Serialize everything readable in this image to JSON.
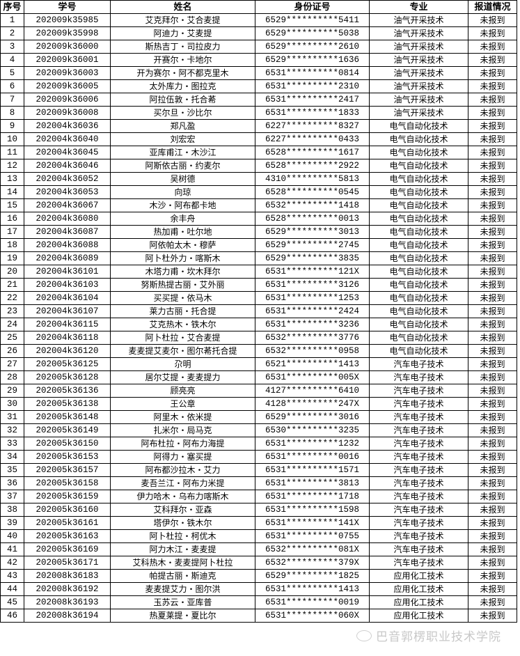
{
  "headers": [
    "序号",
    "学号",
    "姓名",
    "身份证号",
    "专业",
    "报道情况"
  ],
  "rows": [
    [
      "1",
      "202009k35985",
      "艾克拜尔・艾合麦提",
      "6529**********5411",
      "油气开采技术",
      "未报到"
    ],
    [
      "2",
      "202009k35998",
      "阿迪力・艾麦提",
      "6529**********5038",
      "油气开采技术",
      "未报到"
    ],
    [
      "3",
      "202009k36000",
      "斯热吉丁・司拉皮力",
      "6529**********2610",
      "油气开采技术",
      "未报到"
    ],
    [
      "4",
      "202009k36001",
      "开赛尔・卡地尔",
      "6529**********1636",
      "油气开采技术",
      "未报到"
    ],
    [
      "5",
      "202009k36003",
      "开为赛尔・阿不都克里木",
      "6531**********0814",
      "油气开采技术",
      "未报到"
    ],
    [
      "6",
      "202009k36005",
      "太外库力・图拉克",
      "6531**********2310",
      "油气开采技术",
      "未报到"
    ],
    [
      "7",
      "202009k36006",
      "阿拉伍敦・托合莃",
      "6531**********2417",
      "油气开采技术",
      "未报到"
    ],
    [
      "8",
      "202009k36008",
      "买尔旦・沙比尔",
      "6531**********1833",
      "油气开采技术",
      "未报到"
    ],
    [
      "9",
      "202004k36036",
      "郑凡盈",
      "6227**********8327",
      "电气自动化技术",
      "未报到"
    ],
    [
      "10",
      "202004k36040",
      "刘宏宏",
      "6227**********0433",
      "电气自动化技术",
      "未报到"
    ],
    [
      "11",
      "202004k36045",
      "亚库甫江・木沙江",
      "6528**********1617",
      "电气自动化技术",
      "未报到"
    ],
    [
      "12",
      "202004k36046",
      "阿斯依古丽・约麦尔",
      "6528**********2922",
      "电气自动化技术",
      "未报到"
    ],
    [
      "13",
      "202004k36052",
      "吴树德",
      "4310**********5813",
      "电气自动化技术",
      "未报到"
    ],
    [
      "14",
      "202004k36053",
      "向琼",
      "6528**********0545",
      "电气自动化技术",
      "未报到"
    ],
    [
      "15",
      "202004k36067",
      "木沙・阿布都卡地",
      "6532**********1418",
      "电气自动化技术",
      "未报到"
    ],
    [
      "16",
      "202004k36080",
      "余丰舟",
      "6528**********0013",
      "电气自动化技术",
      "未报到"
    ],
    [
      "17",
      "202004k36087",
      "热加甫・吐尔地",
      "6529**********3013",
      "电气自动化技术",
      "未报到"
    ],
    [
      "18",
      "202004k36088",
      "阿依帕太木・穆萨",
      "6529**********2745",
      "电气自动化技术",
      "未报到"
    ],
    [
      "19",
      "202004k36089",
      "阿卜杜外力・喀斯木",
      "6529**********3835",
      "电气自动化技术",
      "未报到"
    ],
    [
      "20",
      "202004k36101",
      "木塔力甫・坎木拜尔",
      "6531**********121X",
      "电气自动化技术",
      "未报到"
    ],
    [
      "21",
      "202004k36103",
      "努斯热提古丽・艾外丽",
      "6531**********3126",
      "电气自动化技术",
      "未报到"
    ],
    [
      "22",
      "202004k36104",
      "买买提・依马木",
      "6531**********1253",
      "电气自动化技术",
      "未报到"
    ],
    [
      "23",
      "202004k36107",
      "莱力古丽・托合提",
      "6531**********2424",
      "电气自动化技术",
      "未报到"
    ],
    [
      "24",
      "202004k36115",
      "艾克热木・铁木尔",
      "6531**********3236",
      "电气自动化技术",
      "未报到"
    ],
    [
      "25",
      "202004k36118",
      "阿卜杜拉・艾合麦提",
      "6532**********3776",
      "电气自动化技术",
      "未报到"
    ],
    [
      "26",
      "202004k36120",
      "麦麦提艾麦尔・图尔莃托合提",
      "6532**********0958",
      "电气自动化技术",
      "未报到"
    ],
    [
      "27",
      "202005k36125",
      "尕明",
      "6521**********1413",
      "汽车电子技术",
      "未报到"
    ],
    [
      "28",
      "202005k36128",
      "居尔艾提・麦麦提力",
      "6531**********005X",
      "汽车电子技术",
      "未报到"
    ],
    [
      "29",
      "202005k36136",
      "顾亮亮",
      "4127**********6410",
      "汽车电子技术",
      "未报到"
    ],
    [
      "30",
      "202005k36138",
      "王公章",
      "4128**********247X",
      "汽车电子技术",
      "未报到"
    ],
    [
      "31",
      "202005k36148",
      "阿里木・依米提",
      "6529**********3016",
      "汽车电子技术",
      "未报到"
    ],
    [
      "32",
      "202005k36149",
      "扎米尔・局马克",
      "6530**********3235",
      "汽车电子技术",
      "未报到"
    ],
    [
      "33",
      "202005k36150",
      "阿布杜拉・阿布力海提",
      "6531**********1232",
      "汽车电子技术",
      "未报到"
    ],
    [
      "34",
      "202005k36153",
      "阿得力・塞买提",
      "6531**********0016",
      "汽车电子技术",
      "未报到"
    ],
    [
      "35",
      "202005k36157",
      "阿布都沙拉木・艾力",
      "6531**********1571",
      "汽车电子技术",
      "未报到"
    ],
    [
      "36",
      "202005k36158",
      "麦吾兰江・阿布力米提",
      "6531**********3813",
      "汽车电子技术",
      "未报到"
    ],
    [
      "37",
      "202005k36159",
      "伊力哈木・乌布力喀斯木",
      "6531**********1718",
      "汽车电子技术",
      "未报到"
    ],
    [
      "38",
      "202005k36160",
      "艾科拜尔・亚森",
      "6531**********1598",
      "汽车电子技术",
      "未报到"
    ],
    [
      "39",
      "202005k36161",
      "塔伊尔・铁木尔",
      "6531**********141X",
      "汽车电子技术",
      "未报到"
    ],
    [
      "40",
      "202005k36163",
      "阿卜杜拉・柯优木",
      "6531**********0755",
      "汽车电子技术",
      "未报到"
    ],
    [
      "41",
      "202005k36169",
      "阿力木江・麦麦提",
      "6532**********081X",
      "汽车电子技术",
      "未报到"
    ],
    [
      "42",
      "202005k36171",
      "艾科热木・麦麦提阿卜杜拉",
      "6532**********379X",
      "汽车电子技术",
      "未报到"
    ],
    [
      "43",
      "202008k36183",
      "帕提古丽・斯迪克",
      "6529**********1825",
      "应用化工技术",
      "未报到"
    ],
    [
      "44",
      "202008k36192",
      "麦麦提艾力・图尔洪",
      "6531**********1413",
      "应用化工技术",
      "未报到"
    ],
    [
      "45",
      "202008k36193",
      "玉苏云・亚库普",
      "6531**********0019",
      "应用化工技术",
      "未报到"
    ],
    [
      "46",
      "202008k36194",
      "热夏莱提・夏比尔",
      "6531**********060X",
      "应用化工技术",
      "未报到"
    ]
  ],
  "watermark": "巴音郭楞职业技术学院"
}
